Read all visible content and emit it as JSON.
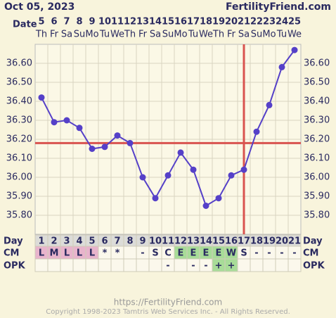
{
  "header": {
    "date": "Oct 05, 2023",
    "site": "FertilityFriend.com",
    "date_label": "Date"
  },
  "chart_data": {
    "type": "line",
    "categories": [
      1,
      2,
      3,
      4,
      5,
      6,
      7,
      8,
      9,
      10,
      11,
      12,
      13,
      14,
      15,
      16,
      17,
      18,
      19,
      20,
      21
    ],
    "dates": [
      5,
      6,
      7,
      8,
      9,
      10,
      11,
      12,
      13,
      14,
      15,
      16,
      17,
      18,
      19,
      20,
      21,
      22,
      23,
      24,
      25
    ],
    "weekdays": [
      "Th",
      "Fr",
      "Sa",
      "Su",
      "Mo",
      "Tu",
      "We",
      "Th",
      "Fr",
      "Sa",
      "Su",
      "Mo",
      "Tu",
      "We",
      "Th",
      "Fr",
      "Sa",
      "Su",
      "Mo",
      "Tu",
      "We"
    ],
    "values": [
      36.42,
      36.29,
      36.3,
      36.26,
      36.15,
      36.16,
      36.22,
      36.18,
      36.0,
      35.89,
      36.01,
      36.13,
      36.04,
      35.85,
      35.89,
      36.01,
      36.04,
      36.24,
      36.38,
      36.58,
      36.67
    ],
    "color": "#5540c8",
    "ylim": [
      35.7,
      36.7
    ],
    "yticks": [
      {
        "value": 35.8,
        "label": "35.80"
      },
      {
        "value": 35.9,
        "label": "35.90"
      },
      {
        "value": 36.0,
        "label": "36.00"
      },
      {
        "value": 36.1,
        "label": "36.10"
      },
      {
        "value": 36.2,
        "label": "36.20"
      },
      {
        "value": 36.3,
        "label": "36.30"
      },
      {
        "value": 36.4,
        "label": "36.40"
      },
      {
        "value": 36.5,
        "label": "36.50"
      },
      {
        "value": 36.6,
        "label": "36.60"
      }
    ],
    "grid": true,
    "coverline": 36.18,
    "ovulation_day": 17,
    "marker_color": "#d9534f"
  },
  "rows": {
    "day_label": "Day",
    "cm_label": "CM",
    "opk_label": "OPK",
    "cm": [
      "L",
      "M",
      "L",
      "L",
      "L",
      "*",
      "*",
      null,
      "-",
      "S",
      "C",
      "E",
      "E",
      "E",
      "E",
      "W",
      "S",
      "-",
      "-",
      "-",
      "-"
    ],
    "opk": [
      null,
      null,
      null,
      null,
      null,
      null,
      null,
      null,
      null,
      null,
      "-",
      null,
      "-",
      "-",
      "+",
      "+",
      null,
      null,
      null,
      null,
      null
    ]
  },
  "footer": {
    "url": "https://FertilityFriend.com",
    "copyright": "Copyright 1998-2023 Tamtris Web Services Inc. - All Rights Reserved."
  }
}
